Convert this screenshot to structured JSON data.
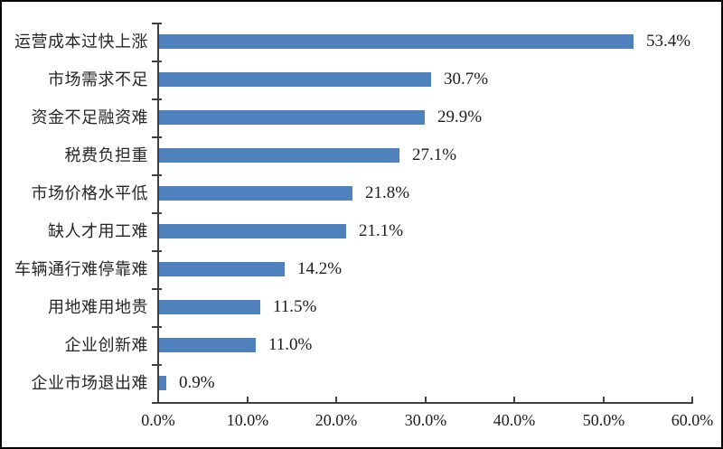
{
  "chart_data": {
    "type": "bar",
    "orientation": "horizontal",
    "title": "",
    "categories": [
      "运营成本过快上涨",
      "市场需求不足",
      "资金不足融资难",
      "税费负担重",
      "市场价格水平低",
      "缺人才用工难",
      "车辆通行难停靠难",
      "用地难用地贵",
      "企业创新难",
      "企业市场退出难"
    ],
    "values": [
      53.4,
      30.7,
      29.9,
      27.1,
      21.8,
      21.1,
      14.2,
      11.5,
      11.0,
      0.9
    ],
    "value_labels": [
      "53.4%",
      "30.7%",
      "29.9%",
      "27.1%",
      "21.8%",
      "21.1%",
      "14.2%",
      "11.5%",
      "11.0%",
      "0.9%"
    ],
    "xlim": [
      0,
      60
    ],
    "x_ticks": [
      {
        "value": 0,
        "label": "0.0%"
      },
      {
        "value": 10,
        "label": "10.0%"
      },
      {
        "value": 20,
        "label": "20.0%"
      },
      {
        "value": 30,
        "label": "30.0%"
      },
      {
        "value": 40,
        "label": "40.0%"
      },
      {
        "value": 50,
        "label": "50.0%"
      },
      {
        "value": 60,
        "label": "60.0%"
      }
    ],
    "xlabel": "",
    "ylabel": "",
    "grid": false,
    "legend": null,
    "colors": {
      "bar": "#4f81bd",
      "axis": "#404040",
      "text": "#1c1c1c",
      "frame": "#000000",
      "background": "#ffffff"
    }
  }
}
